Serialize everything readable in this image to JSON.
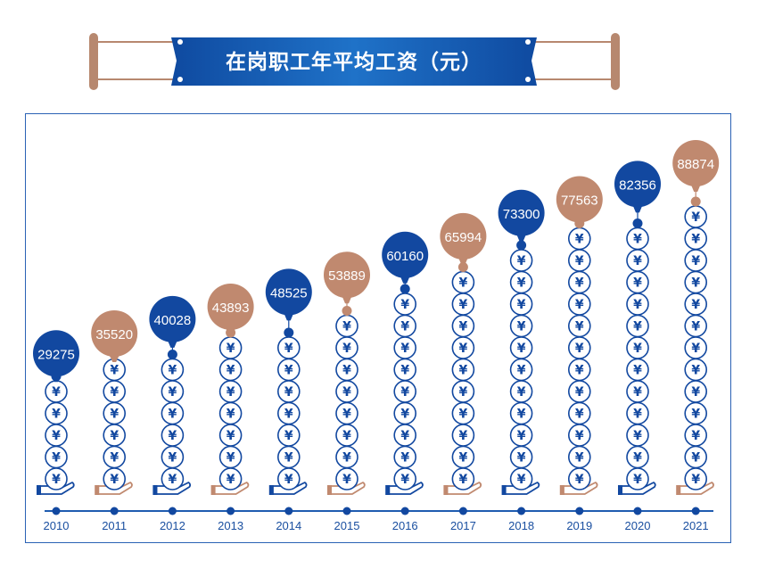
{
  "title": "在岗职工年平均工资（元）",
  "colors": {
    "blue": "#1248a0",
    "copper": "#c0896f",
    "frame": "#2a62b5"
  },
  "chart_data": {
    "type": "bar",
    "title": "在岗职工年平均工资（元）",
    "categories": [
      "2010",
      "2011",
      "2012",
      "2013",
      "2014",
      "2015",
      "2016",
      "2017",
      "2018",
      "2019",
      "2020",
      "2021"
    ],
    "values": [
      29275,
      35520,
      40028,
      43893,
      48525,
      53889,
      60160,
      65994,
      73300,
      77563,
      82356,
      88874
    ],
    "series_colors": [
      "blue",
      "copper",
      "blue",
      "copper",
      "blue",
      "copper",
      "blue",
      "copper",
      "blue",
      "copper",
      "blue",
      "copper"
    ],
    "coin_symbol": "¥",
    "legend": "none",
    "grid": false
  }
}
